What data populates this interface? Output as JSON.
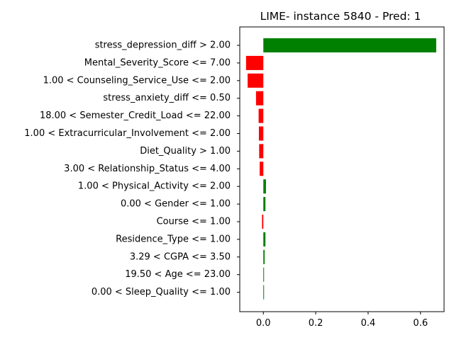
{
  "chart_data": {
    "type": "bar",
    "orientation": "horizontal",
    "title": "LIME- instance 5840 - Pred: 1",
    "xlabel": "",
    "ylabel": "",
    "xlim": [
      -0.09,
      0.69
    ],
    "xticks": [
      0.0,
      0.2,
      0.4,
      0.6
    ],
    "xtick_labels": [
      "0.0",
      "0.2",
      "0.4",
      "0.6"
    ],
    "grid": false,
    "colors": {
      "positive": "#008000",
      "negative": "#ff0000"
    },
    "categories": [
      "stress_depression_diff > 2.00",
      "Mental_Severity_Score <= 7.00",
      "1.00 < Counseling_Service_Use <= 2.00",
      "stress_anxiety_diff <= 0.50",
      "18.00 < Semester_Credit_Load <= 22.00",
      "1.00 < Extracurricular_Involvement <= 2.00",
      "Diet_Quality > 1.00",
      "3.00 < Relationship_Status <= 4.00",
      "1.00 < Physical_Activity <= 2.00",
      "0.00 < Gender <= 1.00",
      "Course <= 1.00",
      "Residence_Type <= 1.00",
      "3.29 < CGPA <= 3.50",
      "19.50 < Age <= 23.00",
      "0.00 < Sleep_Quality <= 1.00"
    ],
    "values": [
      0.66,
      -0.066,
      -0.06,
      -0.028,
      -0.018,
      -0.017,
      -0.016,
      -0.014,
      0.01,
      0.008,
      -0.005,
      0.008,
      0.005,
      0.002,
      0.001
    ]
  }
}
